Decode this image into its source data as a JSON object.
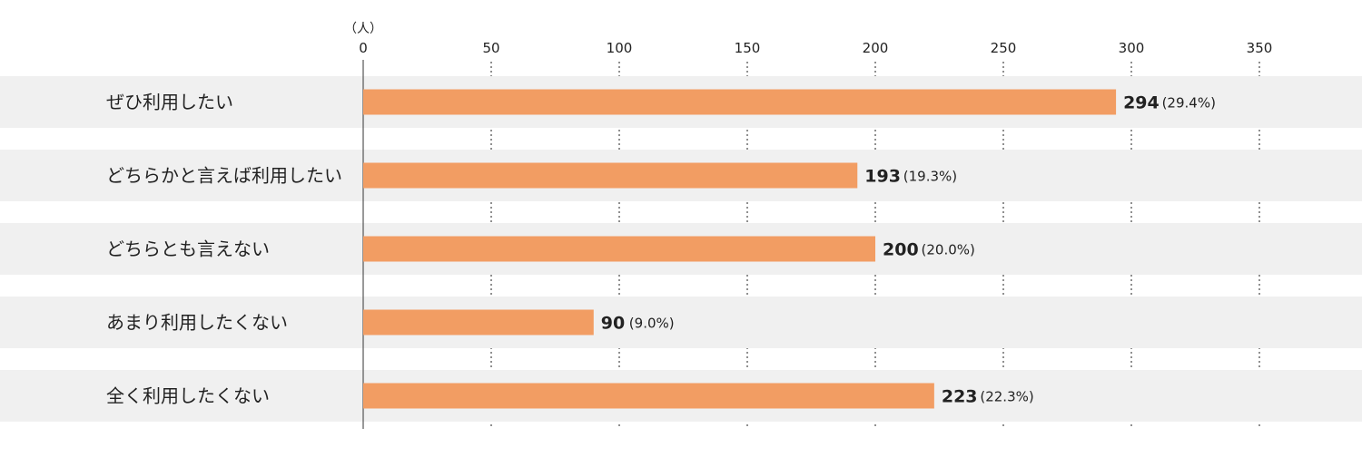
{
  "chart_data": {
    "type": "bar",
    "orientation": "horizontal",
    "unit_label": "（人）",
    "categories": [
      "ぜひ利用したい",
      "どちらかと言えば利用したい",
      "どちらとも言えない",
      "あまり利用したくない",
      "全く利用したくない"
    ],
    "values": [
      294,
      193,
      200,
      90,
      223
    ],
    "percent_labels": [
      "(29.4%)",
      "(19.3%)",
      "(20.0%)",
      "(9.0%)",
      "(22.3%)"
    ],
    "xlim": [
      0,
      350
    ],
    "xticks": [
      0,
      50,
      100,
      150,
      200,
      250,
      300,
      350
    ],
    "grid": "dotted-vertical",
    "colors": {
      "bar": "#f29d63",
      "row_band": "#f0f0f0",
      "text": "#222222",
      "axis": "#555555",
      "grid": "#555555"
    }
  }
}
